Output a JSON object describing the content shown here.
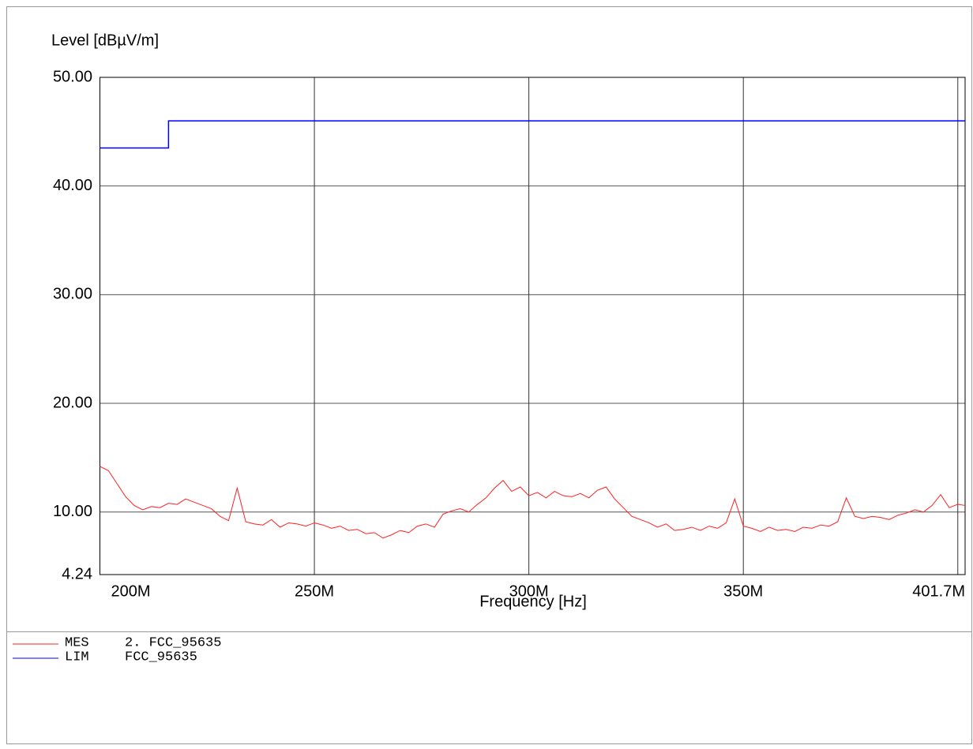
{
  "chart_data": {
    "type": "line",
    "y_label": "Level [dBµV/m]",
    "x_label": "Frequency [Hz]",
    "xlim": [
      200000000,
      401700000
    ],
    "xticks": [
      {
        "value": 200000000,
        "label": "200M"
      },
      {
        "value": 250000000,
        "label": "250M"
      },
      {
        "value": 300000000,
        "label": "300M"
      },
      {
        "value": 350000000,
        "label": "350M"
      },
      {
        "value": 401700000,
        "label": "401.7M"
      }
    ],
    "xgrid": [
      250000000,
      300000000,
      350000000,
      400000000
    ],
    "ylim": [
      4.24,
      50
    ],
    "yticks": [
      4.24,
      {
        "value": 10,
        "label": "10.00"
      },
      {
        "value": 20,
        "label": "20.00"
      },
      {
        "value": 30,
        "label": "30.00"
      },
      {
        "value": 40,
        "label": "40.00"
      },
      {
        "value": 50,
        "label": "50.00"
      }
    ],
    "grid": true,
    "series": [
      {
        "name": "MES",
        "description": "2. FCC_95635",
        "color": "#ff2020",
        "x": [
          200000000,
          202000000,
          204000000,
          206000000,
          208000000,
          210000000,
          212000000,
          214000000,
          216000000,
          218000000,
          220000000,
          222000000,
          224000000,
          226000000,
          228000000,
          230000000,
          232000000,
          234000000,
          236000000,
          238000000,
          240000000,
          242000000,
          244000000,
          246000000,
          248000000,
          250000000,
          252000000,
          254000000,
          256000000,
          258000000,
          260000000,
          262000000,
          264000000,
          266000000,
          268000000,
          270000000,
          272000000,
          274000000,
          276000000,
          278000000,
          280000000,
          282000000,
          284000000,
          286000000,
          288000000,
          290000000,
          292000000,
          294000000,
          296000000,
          298000000,
          300000000,
          302000000,
          304000000,
          306000000,
          308000000,
          310000000,
          312000000,
          314000000,
          316000000,
          318000000,
          320000000,
          322000000,
          324000000,
          326000000,
          328000000,
          330000000,
          332000000,
          334000000,
          336000000,
          338000000,
          340000000,
          342000000,
          344000000,
          346000000,
          348000000,
          350000000,
          352000000,
          354000000,
          356000000,
          358000000,
          360000000,
          362000000,
          364000000,
          366000000,
          368000000,
          370000000,
          372000000,
          374000000,
          376000000,
          378000000,
          380000000,
          382000000,
          384000000,
          386000000,
          388000000,
          390000000,
          392000000,
          394000000,
          396000000,
          398000000,
          400000000,
          401700000
        ],
        "values": [
          14.2,
          13.8,
          12.6,
          11.4,
          10.6,
          10.2,
          10.5,
          10.4,
          10.8,
          10.7,
          11.2,
          10.9,
          10.6,
          10.3,
          9.6,
          9.2,
          12.2,
          9.1,
          8.9,
          8.8,
          9.3,
          8.6,
          9.0,
          8.9,
          8.7,
          9.0,
          8.8,
          8.5,
          8.7,
          8.3,
          8.4,
          8.0,
          8.1,
          7.6,
          7.9,
          8.3,
          8.1,
          8.7,
          8.9,
          8.6,
          9.8,
          10.1,
          10.3,
          10.0,
          10.7,
          11.3,
          12.2,
          12.9,
          11.9,
          12.3,
          11.5,
          11.8,
          11.3,
          11.9,
          11.5,
          11.4,
          11.7,
          11.3,
          12.0,
          12.3,
          11.2,
          10.4,
          9.6,
          9.3,
          9.0,
          8.6,
          8.9,
          8.3,
          8.4,
          8.6,
          8.3,
          8.7,
          8.5,
          9.0,
          11.2,
          8.7,
          8.5,
          8.2,
          8.6,
          8.3,
          8.4,
          8.2,
          8.6,
          8.5,
          8.8,
          8.7,
          9.1,
          11.3,
          9.6,
          9.4,
          9.6,
          9.5,
          9.3,
          9.7,
          9.9,
          10.2,
          10.0,
          10.6,
          11.6,
          10.4,
          10.7,
          10.6
        ]
      },
      {
        "name": "LIM",
        "description": "FCC_95635",
        "color": "#0000ff",
        "x": [
          200000000,
          216000000,
          216000000,
          401700000
        ],
        "values": [
          43.5,
          43.5,
          46,
          46
        ]
      }
    ]
  }
}
